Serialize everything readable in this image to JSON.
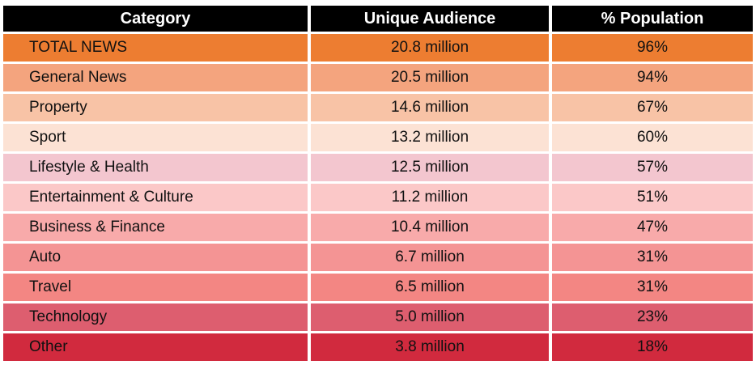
{
  "chart_data": {
    "type": "table",
    "title": "",
    "columns": [
      "Category",
      "Unique Audience",
      "% Population"
    ],
    "rows": [
      {
        "category": "TOTAL NEWS",
        "audience": "20.8 million",
        "population": "96%",
        "color": "#ED7D31"
      },
      {
        "category": "General News",
        "audience": "20.5 million",
        "population": "94%",
        "color": "#F4A47E"
      },
      {
        "category": "Property",
        "audience": "14.6 million",
        "population": "67%",
        "color": "#F8C3A6"
      },
      {
        "category": "Sport",
        "audience": "13.2 million",
        "population": "60%",
        "color": "#FCE2D4"
      },
      {
        "category": "Lifestyle & Health",
        "audience": "12.5 million",
        "population": "57%",
        "color": "#F3C6CF"
      },
      {
        "category": "Entertainment & Culture",
        "audience": "11.2 million",
        "population": "51%",
        "color": "#FBC8C8"
      },
      {
        "category": "Business & Finance",
        "audience": "10.4 million",
        "population": "47%",
        "color": "#F8AAAA"
      },
      {
        "category": "Auto",
        "audience": "6.7 million",
        "population": "31%",
        "color": "#F49494"
      },
      {
        "category": "Travel",
        "audience": "6.5 million",
        "population": "31%",
        "color": "#F38683"
      },
      {
        "category": "Technology",
        "audience": "5.0 million",
        "population": "23%",
        "color": "#DD5E6F"
      },
      {
        "category": "Other",
        "audience": "3.8 million",
        "population": "18%",
        "color": "#D12A3E"
      }
    ],
    "values_millions": [
      20.8,
      20.5,
      14.6,
      13.2,
      12.5,
      11.2,
      10.4,
      6.7,
      6.5,
      5.0,
      3.8
    ],
    "values_percent": [
      96,
      94,
      67,
      60,
      57,
      51,
      47,
      31,
      31,
      23,
      18
    ]
  }
}
